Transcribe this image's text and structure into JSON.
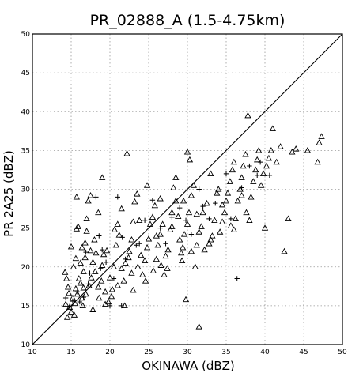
{
  "chart_data": {
    "type": "scatter",
    "title": "PR_02888_A (1.5-4.75km)",
    "xlabel": "OKINAWA (dBZ)",
    "ylabel": "PR 2A25 (dBZ)",
    "xlim": [
      10,
      50
    ],
    "ylim": [
      10,
      50
    ],
    "xticks": [
      10,
      15,
      20,
      25,
      30,
      35,
      40,
      45,
      50
    ],
    "yticks": [
      10,
      15,
      20,
      25,
      30,
      35,
      40,
      45,
      50
    ],
    "grid": true,
    "reference_line": "1:1",
    "series": [
      {
        "marker": "triangle",
        "points": [
          [
            14.2,
            19.3
          ],
          [
            14.4,
            18.5
          ],
          [
            14.6,
            17.4
          ],
          [
            14.3,
            15.2
          ],
          [
            14.8,
            14.8
          ],
          [
            15.0,
            14.2
          ],
          [
            15.2,
            16.0
          ],
          [
            14.5,
            13.5
          ],
          [
            15.5,
            15.3
          ],
          [
            15.4,
            13.8
          ],
          [
            15.6,
            17.2
          ],
          [
            15.8,
            16.5
          ],
          [
            15.3,
            20.0
          ],
          [
            15.6,
            21.1
          ],
          [
            15.0,
            22.6
          ],
          [
            15.7,
            24.9
          ],
          [
            15.9,
            25.2
          ],
          [
            15.7,
            29.0
          ],
          [
            16.2,
            17.9
          ],
          [
            16.4,
            16.0
          ],
          [
            16.5,
            15.0
          ],
          [
            16.9,
            16.5
          ],
          [
            16.2,
            20.5
          ],
          [
            16.6,
            19.4
          ],
          [
            16.8,
            21.2
          ],
          [
            16.4,
            22.5
          ],
          [
            16.8,
            23.1
          ],
          [
            17.0,
            24.6
          ],
          [
            17.2,
            28.5
          ],
          [
            17.5,
            29.2
          ],
          [
            17.3,
            17.6
          ],
          [
            17.6,
            18.6
          ],
          [
            17.8,
            20.6
          ],
          [
            17.5,
            22.1
          ],
          [
            18.0,
            23.5
          ],
          [
            18.2,
            21.8
          ],
          [
            18.1,
            19.4
          ],
          [
            18.5,
            17.4
          ],
          [
            18.9,
            18.2
          ],
          [
            19.0,
            20.2
          ],
          [
            19.2,
            21.6
          ],
          [
            19.6,
            22.1
          ],
          [
            19.4,
            16.8
          ],
          [
            19.8,
            15.5
          ],
          [
            20.0,
            18.6
          ],
          [
            20.3,
            17.1
          ],
          [
            20.5,
            20.0
          ],
          [
            20.8,
            22.8
          ],
          [
            20.6,
            24.8
          ],
          [
            21.0,
            25.5
          ],
          [
            21.2,
            24.1
          ],
          [
            21.5,
            19.8
          ],
          [
            21.8,
            18.2
          ],
          [
            21.9,
            15.0
          ],
          [
            22.0,
            20.5
          ],
          [
            22.4,
            21.2
          ],
          [
            22.5,
            22.0
          ],
          [
            22.8,
            23.5
          ],
          [
            23.0,
            25.8
          ],
          [
            23.2,
            28.4
          ],
          [
            23.5,
            29.4
          ],
          [
            23.8,
            26.0
          ],
          [
            23.6,
            20.0
          ],
          [
            24.0,
            21.5
          ],
          [
            24.2,
            19.0
          ],
          [
            24.5,
            20.8
          ],
          [
            24.8,
            22.5
          ],
          [
            25.0,
            23.6
          ],
          [
            25.2,
            25.5
          ],
          [
            25.5,
            26.4
          ],
          [
            25.8,
            27.9
          ],
          [
            25.6,
            19.5
          ],
          [
            26.0,
            21.0
          ],
          [
            26.2,
            22.8
          ],
          [
            26.5,
            24.2
          ],
          [
            26.8,
            25.5
          ],
          [
            26.6,
            20.2
          ],
          [
            27.0,
            19.0
          ],
          [
            27.2,
            21.4
          ],
          [
            27.5,
            22.2
          ],
          [
            27.8,
            24.8
          ],
          [
            28.0,
            27.0
          ],
          [
            28.2,
            30.2
          ],
          [
            28.5,
            31.5
          ],
          [
            28.8,
            26.5
          ],
          [
            29.0,
            23.5
          ],
          [
            29.2,
            21.8
          ],
          [
            29.4,
            22.5
          ],
          [
            29.6,
            24.2
          ],
          [
            30.0,
            25.5
          ],
          [
            30.2,
            27.0
          ],
          [
            30.5,
            29.2
          ],
          [
            30.8,
            30.5
          ],
          [
            30.3,
            33.8
          ],
          [
            30.0,
            34.8
          ],
          [
            29.5,
            28.5
          ],
          [
            29.8,
            15.8
          ],
          [
            31.5,
            12.3
          ],
          [
            31.0,
            20.0
          ],
          [
            31.2,
            22.8
          ],
          [
            31.5,
            24.5
          ],
          [
            31.8,
            25.2
          ],
          [
            32.0,
            27.0
          ],
          [
            32.5,
            28.2
          ],
          [
            32.2,
            22.2
          ],
          [
            33.0,
            23.5
          ],
          [
            33.2,
            24.0
          ],
          [
            33.5,
            26.0
          ],
          [
            33.8,
            29.5
          ],
          [
            34.0,
            30.0
          ],
          [
            34.2,
            24.5
          ],
          [
            34.5,
            25.8
          ],
          [
            34.8,
            27.0
          ],
          [
            35.0,
            28.5
          ],
          [
            35.2,
            29.5
          ],
          [
            35.5,
            31.0
          ],
          [
            35.8,
            32.5
          ],
          [
            35.6,
            25.3
          ],
          [
            36.0,
            24.8
          ],
          [
            36.2,
            26.2
          ],
          [
            36.5,
            28.5
          ],
          [
            36.8,
            30.0
          ],
          [
            37.0,
            31.5
          ],
          [
            37.2,
            33.0
          ],
          [
            37.5,
            34.5
          ],
          [
            37.8,
            39.5
          ],
          [
            37.6,
            27.0
          ],
          [
            38.0,
            26.0
          ],
          [
            38.2,
            29.0
          ],
          [
            38.5,
            31.0
          ],
          [
            38.8,
            32.5
          ],
          [
            39.0,
            33.8
          ],
          [
            39.2,
            35.0
          ],
          [
            39.5,
            30.5
          ],
          [
            39.8,
            32.0
          ],
          [
            40.0,
            25.0
          ],
          [
            40.2,
            33.0
          ],
          [
            40.5,
            34.0
          ],
          [
            40.8,
            35.0
          ],
          [
            41.0,
            37.8
          ],
          [
            41.5,
            33.5
          ],
          [
            42.0,
            35.5
          ],
          [
            42.5,
            22.0
          ],
          [
            43.0,
            26.2
          ],
          [
            43.5,
            34.8
          ],
          [
            44.0,
            35.2
          ],
          [
            45.5,
            35.0
          ],
          [
            46.8,
            33.5
          ],
          [
            47.0,
            36.0
          ],
          [
            47.3,
            36.8
          ],
          [
            22.2,
            34.6
          ],
          [
            19.0,
            31.5
          ],
          [
            17.0,
            26.2
          ],
          [
            18.5,
            27.0
          ],
          [
            21.5,
            27.5
          ],
          [
            24.8,
            30.5
          ],
          [
            26.5,
            28.8
          ],
          [
            28.5,
            28.5
          ],
          [
            33.0,
            32.0
          ],
          [
            36.0,
            33.5
          ],
          [
            16.0,
            18.5
          ],
          [
            16.6,
            17.3
          ],
          [
            18.6,
            16.0
          ],
          [
            20.2,
            16.2
          ],
          [
            23.0,
            17.0
          ],
          [
            24.6,
            18.2
          ],
          [
            27.4,
            19.8
          ],
          [
            29.3,
            20.8
          ],
          [
            30.5,
            22.0
          ],
          [
            32.8,
            23.0
          ],
          [
            14.7,
            16.6
          ],
          [
            17.8,
            14.5
          ],
          [
            19.4,
            15.2
          ],
          [
            21.0,
            17.6
          ],
          [
            22.8,
            19.2
          ],
          [
            26.0,
            24.0
          ],
          [
            28.0,
            25.2
          ],
          [
            31.2,
            26.8
          ],
          [
            34.5,
            28.0
          ],
          [
            37.0,
            29.2
          ]
        ]
      },
      {
        "marker": "plus",
        "points": [
          [
            14.3,
            16.0
          ],
          [
            14.8,
            14.9
          ],
          [
            15.2,
            15.6
          ],
          [
            15.8,
            16.8
          ],
          [
            16.1,
            15.5
          ],
          [
            16.6,
            16.1
          ],
          [
            17.2,
            17.8
          ],
          [
            17.8,
            18.2
          ],
          [
            18.2,
            29.0
          ],
          [
            18.6,
            24.0
          ],
          [
            19.0,
            22.2
          ],
          [
            19.5,
            20.6
          ],
          [
            20.5,
            18.5
          ],
          [
            21.0,
            29.0
          ],
          [
            21.6,
            23.8
          ],
          [
            22.0,
            21.0
          ],
          [
            23.4,
            22.8
          ],
          [
            24.5,
            26.0
          ],
          [
            25.5,
            28.6
          ],
          [
            26.5,
            25.0
          ],
          [
            27.2,
            23.0
          ],
          [
            28.0,
            26.4
          ],
          [
            29.0,
            27.6
          ],
          [
            29.8,
            26.0
          ],
          [
            30.5,
            24.2
          ],
          [
            31.5,
            30.0
          ],
          [
            32.0,
            27.8
          ],
          [
            32.8,
            26.2
          ],
          [
            33.6,
            28.2
          ],
          [
            35.0,
            32.0
          ],
          [
            35.6,
            26.2
          ],
          [
            36.4,
            18.5
          ],
          [
            37.0,
            30.2
          ],
          [
            38.0,
            33.0
          ],
          [
            39.0,
            31.8
          ],
          [
            39.4,
            33.5
          ],
          [
            40.6,
            31.8
          ],
          [
            20.0,
            15.0
          ],
          [
            21.5,
            15.0
          ],
          [
            23.8,
            23.0
          ],
          [
            16.9,
            21.9
          ],
          [
            17.4,
            19.2
          ],
          [
            18.8,
            19.8
          ]
        ]
      }
    ]
  }
}
